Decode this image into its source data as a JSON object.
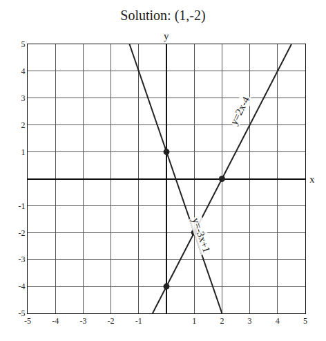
{
  "chart_data": {
    "type": "line",
    "title": "Solution: (1,-2)",
    "xlabel": "x",
    "ylabel": "y",
    "series": [
      {
        "name": "y=2x-4",
        "color": "#222222",
        "x": [
          -0.5,
          0,
          1,
          2,
          4.5
        ],
        "values": [
          -5,
          -4,
          -2,
          0,
          5
        ]
      },
      {
        "name": "y=-3x+1",
        "color": "#222222",
        "x": [
          -1.33,
          0,
          1,
          2
        ],
        "values": [
          5,
          1,
          -2,
          -5
        ]
      }
    ],
    "points": {
      "x": [
        0,
        1,
        2,
        0
      ],
      "y": [
        -4,
        -2,
        0,
        1
      ],
      "marker": "circle",
      "color": "#222222"
    },
    "xlim": [
      -5,
      5
    ],
    "ylim": [
      -5,
      5
    ],
    "xticks": [
      -5,
      -4,
      -3,
      -2,
      -1,
      1,
      2,
      3,
      4,
      5
    ],
    "yticks": [
      -5,
      -4,
      -3,
      -2,
      -1,
      1,
      2,
      3,
      4,
      5
    ],
    "grid": true,
    "legend": false
  }
}
